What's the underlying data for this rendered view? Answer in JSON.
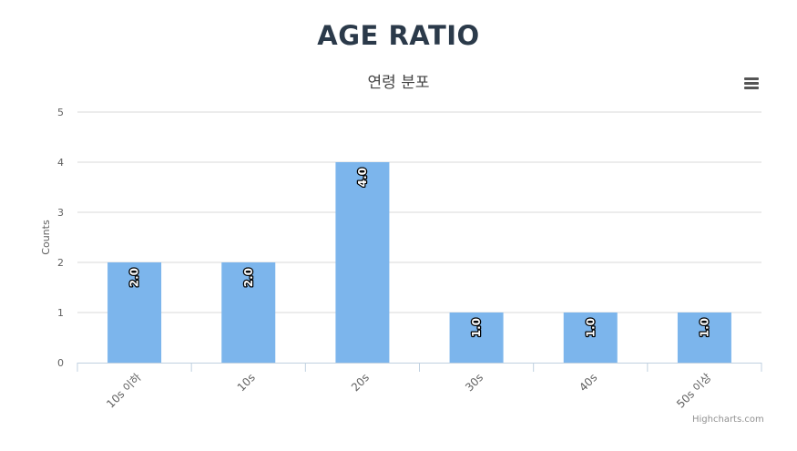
{
  "chart_data": {
    "type": "bar",
    "title": "AGE RATIO",
    "subtitle": "연령 분포",
    "xlabel": "",
    "ylabel": "Counts",
    "categories": [
      "10s 이하",
      "10s",
      "20s",
      "30s",
      "40s",
      "50s 이상"
    ],
    "values": [
      2,
      2,
      4,
      1,
      1,
      1
    ],
    "data_labels": [
      "2.0",
      "2.0",
      "4.0",
      "1.0",
      "1.0",
      "1.0"
    ],
    "yticks": [
      "0",
      "1",
      "2",
      "3",
      "4",
      "5"
    ],
    "ylim": [
      0,
      5
    ],
    "grid": true,
    "legend": "none",
    "bar_color": "#7cb5ec"
  },
  "credits": "Highcharts.com",
  "menu_icon": "hamburger-menu-icon"
}
